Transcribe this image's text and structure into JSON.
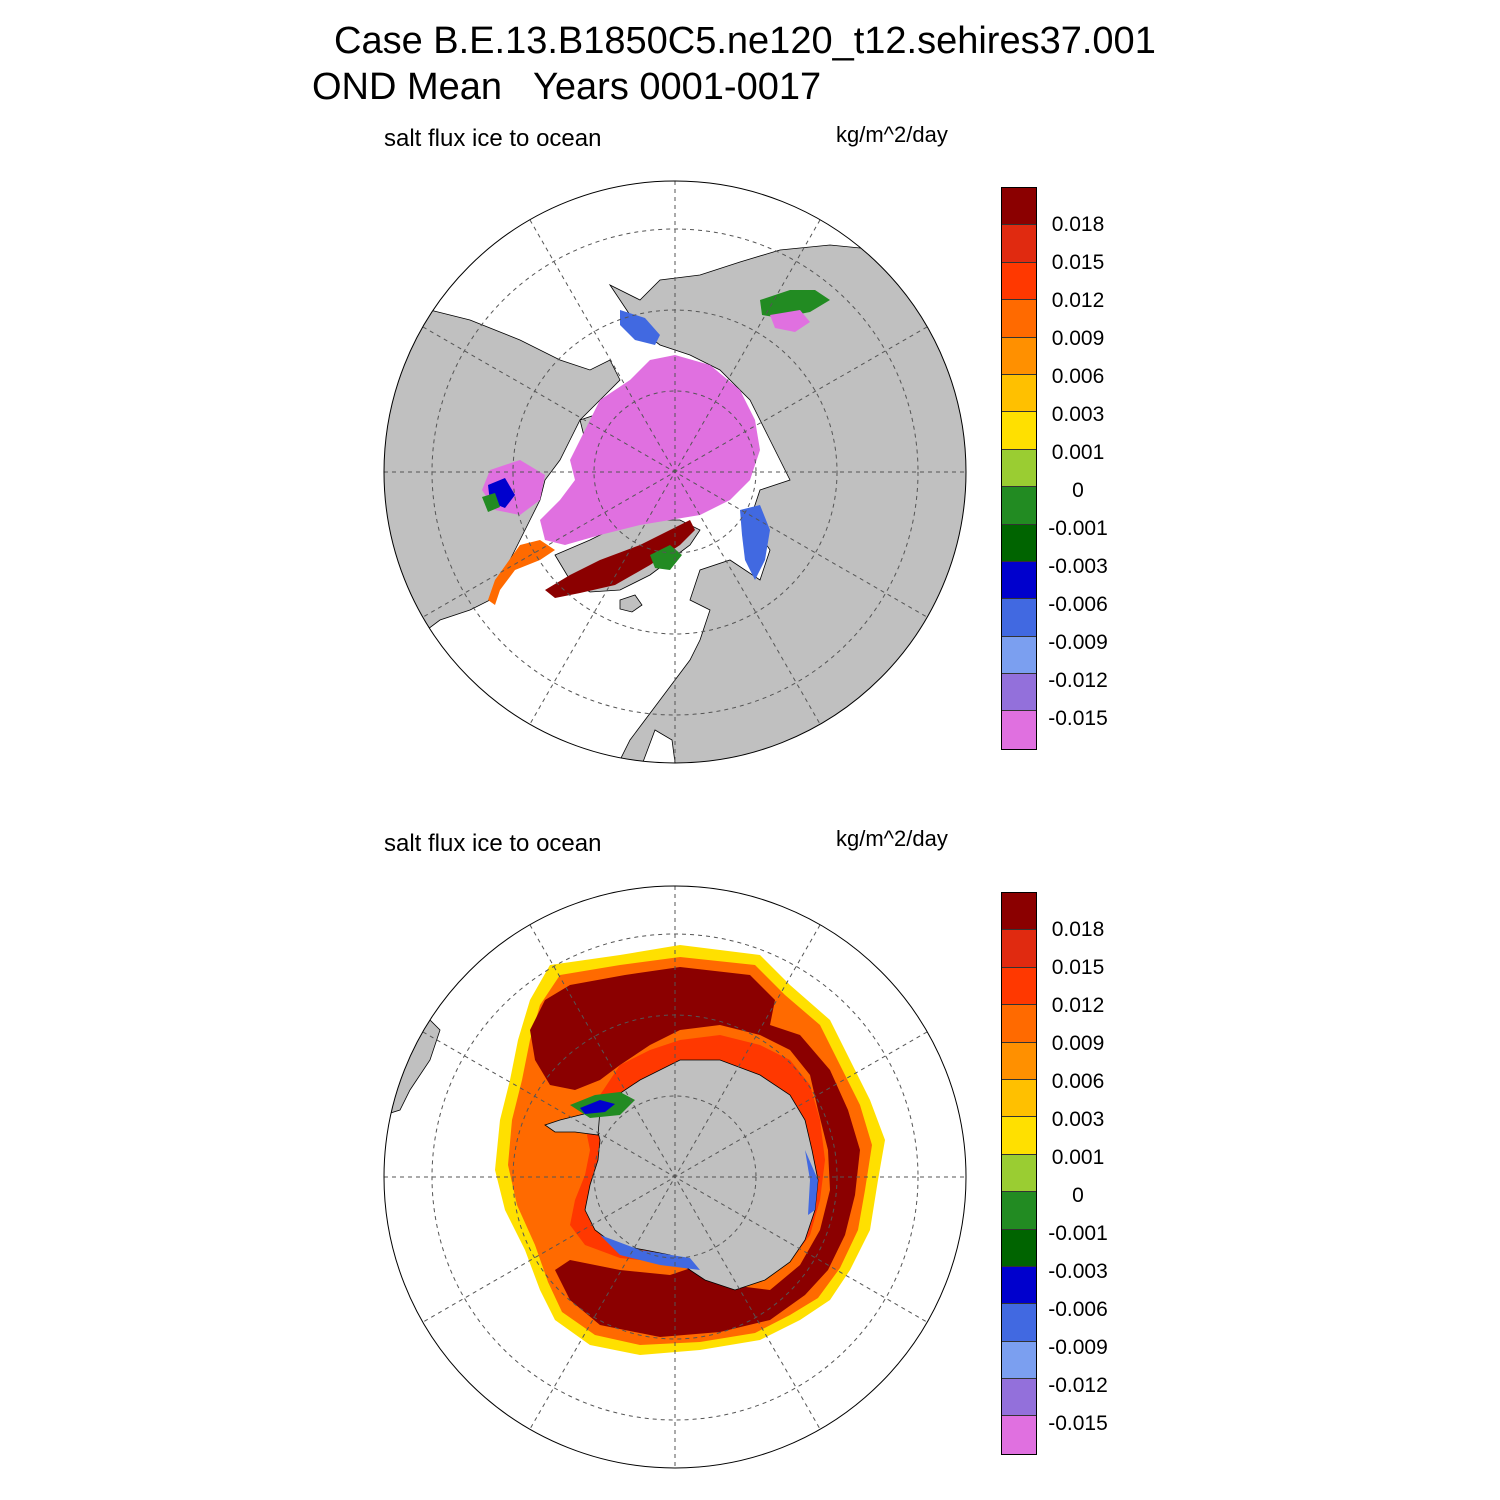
{
  "title_line1": "Case B.E.13.B1850C5.ne120_t12.sehires37.001",
  "title_line2": "OND Mean   Years 0001-0017",
  "colors": {
    "land": "#c0c0c0",
    "ocean": "#ffffff",
    "grid": "#555555",
    "levels": [
      "#e070e0",
      "#9370db",
      "#7b9ff0",
      "#4169e1",
      "#0000cd",
      "#006400",
      "#228b22",
      "#9acd32",
      "#ffe000",
      "#ffc000",
      "#ff9000",
      "#ff6a00",
      "#ff3800",
      "#e02a10",
      "#8b0000"
    ]
  },
  "panels": [
    {
      "id": "north",
      "subtitle": "salt flux ice to ocean",
      "units": "kg/m^2/day",
      "hemisphere": "Northern",
      "colorbar_labels": [
        "0.018",
        "0.015",
        "0.012",
        "0.009",
        "0.006",
        "0.003",
        "0.001",
        "0",
        "-0.001",
        "-0.003",
        "-0.006",
        "-0.009",
        "-0.012",
        "-0.015"
      ]
    },
    {
      "id": "south",
      "subtitle": "salt flux ice to ocean",
      "units": "kg/m^2/day",
      "hemisphere": "Southern",
      "colorbar_labels": [
        "0.018",
        "0.015",
        "0.012",
        "0.009",
        "0.006",
        "0.003",
        "0.001",
        "0",
        "-0.001",
        "-0.003",
        "-0.006",
        "-0.009",
        "-0.012",
        "-0.015"
      ]
    }
  ]
}
